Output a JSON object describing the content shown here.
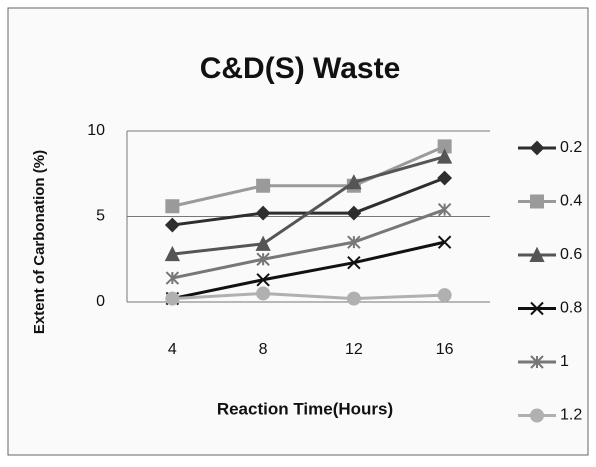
{
  "chart_data": {
    "type": "line",
    "title": "C&D(S) Waste",
    "x_label": "Reaction Time(Hours)",
    "y_label": "Extent of Carbonation  (%)",
    "categories": [
      "4",
      "8",
      "12",
      "16"
    ],
    "series": [
      {
        "name": "0.2",
        "color": "#2e2e2e",
        "marker": "diamond",
        "values": [
          4.5,
          5.2,
          5.2,
          7.25
        ]
      },
      {
        "name": "0.4",
        "color": "#9a9a9a",
        "marker": "square",
        "values": [
          5.6,
          6.8,
          6.8,
          9.1
        ]
      },
      {
        "name": "0.6",
        "color": "#555555",
        "marker": "triangle",
        "values": [
          2.8,
          3.4,
          7.0,
          8.5
        ]
      },
      {
        "name": "0.8",
        "color": "#111111",
        "marker": "x",
        "values": [
          0.2,
          1.3,
          2.3,
          3.5
        ]
      },
      {
        "name": "1",
        "color": "#777777",
        "marker": "star",
        "values": [
          1.4,
          2.5,
          3.5,
          5.4
        ]
      },
      {
        "name": "1.2",
        "color": "#b0b0b0",
        "marker": "circle",
        "values": [
          0.2,
          0.5,
          0.2,
          0.4
        ]
      }
    ],
    "ylim": [
      0,
      10
    ],
    "yticks": [
      0,
      5,
      10
    ],
    "grid": true,
    "legend": "right"
  }
}
